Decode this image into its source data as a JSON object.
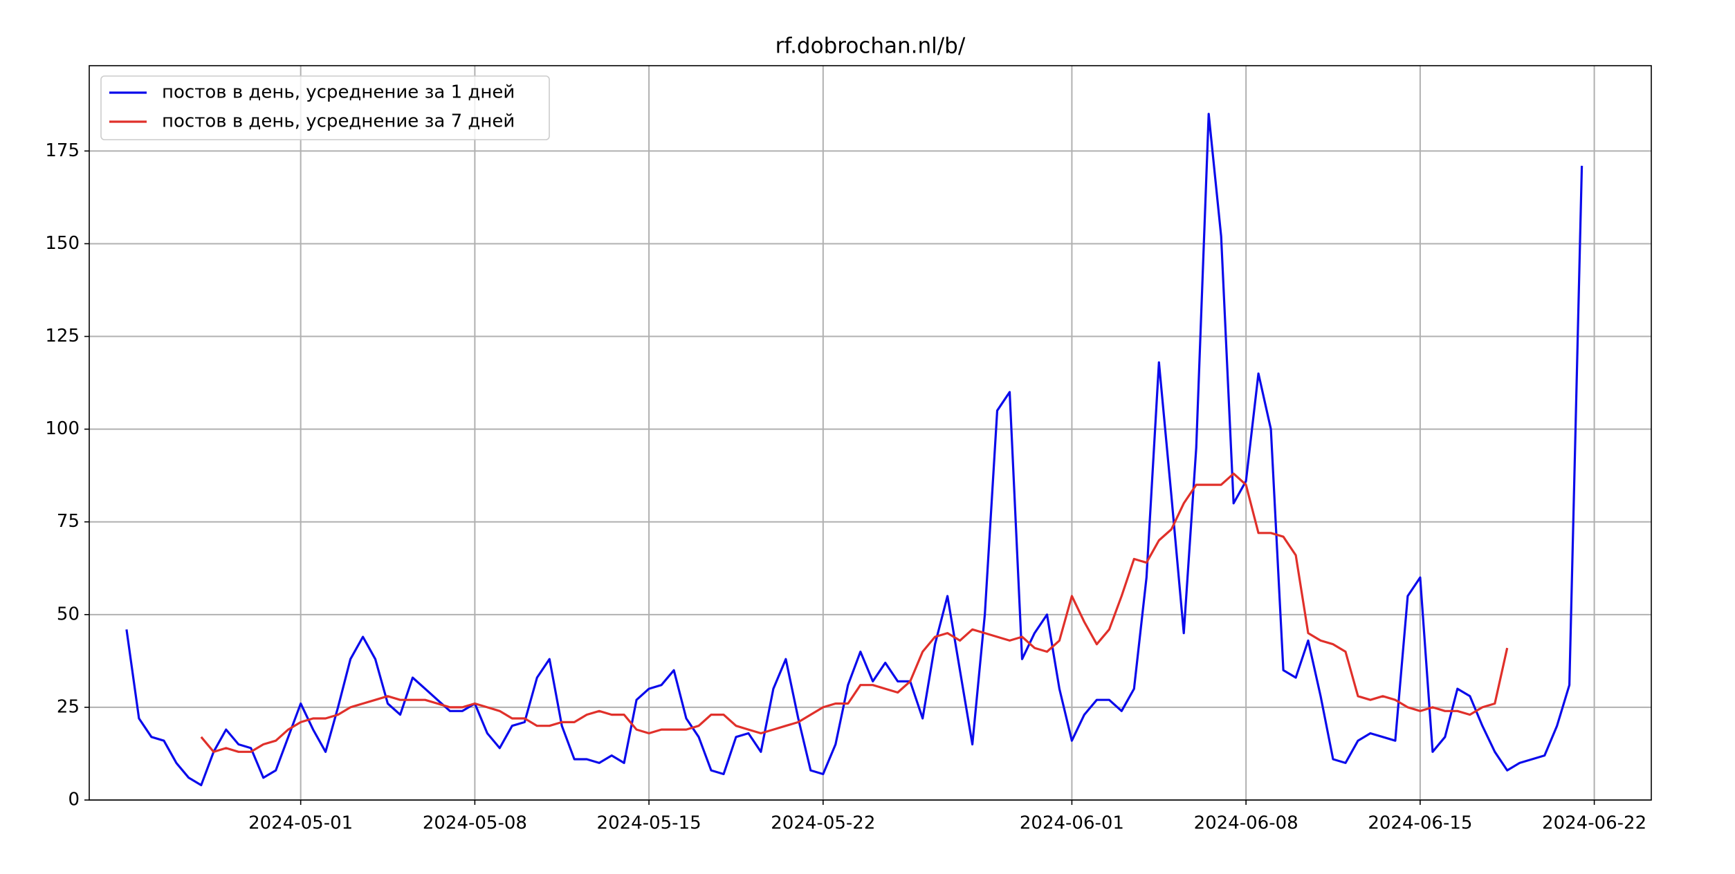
{
  "chart_data": {
    "type": "line",
    "title": "rf.dobrochan.nl/b/",
    "x": [
      "2024-04-24T00:00",
      "2024-04-24T12:00",
      "2024-04-25T00:00",
      "2024-04-25T12:00",
      "2024-04-26T00:00",
      "2024-04-26T12:00",
      "2024-04-27T00:00",
      "2024-04-27T12:00",
      "2024-04-28T00:00",
      "2024-04-28T12:00",
      "2024-04-29T00:00",
      "2024-04-29T12:00",
      "2024-04-30T00:00",
      "2024-04-30T12:00",
      "2024-05-01T00:00",
      "2024-05-01T12:00",
      "2024-05-02T00:00",
      "2024-05-02T12:00",
      "2024-05-03T00:00",
      "2024-05-03T12:00",
      "2024-05-04T00:00",
      "2024-05-04T12:00",
      "2024-05-05T00:00",
      "2024-05-05T12:00",
      "2024-05-06T00:00",
      "2024-05-06T12:00",
      "2024-05-07T00:00",
      "2024-05-07T12:00",
      "2024-05-08T00:00",
      "2024-05-08T12:00",
      "2024-05-09T00:00",
      "2024-05-09T12:00",
      "2024-05-10T00:00",
      "2024-05-10T12:00",
      "2024-05-11T00:00",
      "2024-05-11T12:00",
      "2024-05-12T00:00",
      "2024-05-12T12:00",
      "2024-05-13T00:00",
      "2024-05-13T12:00",
      "2024-05-14T00:00",
      "2024-05-14T12:00",
      "2024-05-15T00:00",
      "2024-05-15T12:00",
      "2024-05-16T00:00",
      "2024-05-16T12:00",
      "2024-05-17T00:00",
      "2024-05-17T12:00",
      "2024-05-18T00:00",
      "2024-05-18T12:00",
      "2024-05-19T00:00",
      "2024-05-19T12:00",
      "2024-05-20T00:00",
      "2024-05-20T12:00",
      "2024-05-21T00:00",
      "2024-05-21T12:00",
      "2024-05-22T00:00",
      "2024-05-22T12:00",
      "2024-05-23T00:00",
      "2024-05-23T12:00",
      "2024-05-24T00:00",
      "2024-05-24T12:00",
      "2024-05-25T00:00",
      "2024-05-25T12:00",
      "2024-05-26T00:00",
      "2024-05-26T12:00",
      "2024-05-27T00:00",
      "2024-05-27T12:00",
      "2024-05-28T00:00",
      "2024-05-28T12:00",
      "2024-05-29T00:00",
      "2024-05-29T12:00",
      "2024-05-30T00:00",
      "2024-05-30T12:00",
      "2024-05-31T00:00",
      "2024-05-31T12:00",
      "2024-06-01T00:00",
      "2024-06-01T12:00",
      "2024-06-02T00:00",
      "2024-06-02T12:00",
      "2024-06-03T00:00",
      "2024-06-03T12:00",
      "2024-06-04T00:00",
      "2024-06-04T12:00",
      "2024-06-05T00:00",
      "2024-06-05T12:00",
      "2024-06-06T00:00",
      "2024-06-06T12:00",
      "2024-06-07T00:00",
      "2024-06-07T12:00",
      "2024-06-08T00:00",
      "2024-06-08T12:00",
      "2024-06-09T00:00",
      "2024-06-09T12:00",
      "2024-06-10T00:00",
      "2024-06-10T12:00",
      "2024-06-11T00:00",
      "2024-06-11T12:00",
      "2024-06-12T00:00",
      "2024-06-12T12:00",
      "2024-06-13T00:00",
      "2024-06-13T12:00",
      "2024-06-14T00:00",
      "2024-06-14T12:00",
      "2024-06-15T00:00",
      "2024-06-15T12:00",
      "2024-06-16T00:00",
      "2024-06-16T12:00",
      "2024-06-17T00:00",
      "2024-06-17T12:00",
      "2024-06-18T00:00",
      "2024-06-18T12:00",
      "2024-06-19T00:00",
      "2024-06-19T12:00",
      "2024-06-20T00:00",
      "2024-06-20T12:00",
      "2024-06-21T00:00",
      "2024-06-21T12:00"
    ],
    "series": [
      {
        "name": "постов в день, усреднение за 1 дней",
        "color": "#0a0aeb",
        "values": [
          46,
          22,
          17,
          16,
          10,
          6,
          4,
          13,
          19,
          15,
          14,
          6,
          8,
          17,
          26,
          19,
          13,
          25,
          38,
          44,
          38,
          26,
          23,
          33,
          30,
          27,
          24,
          24,
          26,
          18,
          14,
          20,
          21,
          33,
          38,
          20,
          11,
          11,
          10,
          12,
          10,
          27,
          30,
          31,
          35,
          22,
          17,
          8,
          7,
          17,
          18,
          13,
          30,
          38,
          22,
          8,
          7,
          15,
          31,
          40,
          32,
          37,
          32,
          32,
          22,
          42,
          55,
          35,
          15,
          50,
          105,
          110,
          38,
          45,
          50,
          30,
          16,
          23,
          27,
          27,
          24,
          30,
          60,
          118,
          82,
          45,
          95,
          185,
          152,
          80,
          86,
          115,
          100,
          35,
          33,
          43,
          28,
          11,
          10,
          16,
          18,
          17,
          16,
          55,
          60,
          13,
          17,
          30,
          28,
          20,
          13,
          8,
          10,
          11,
          12,
          20,
          31,
          171
        ]
      },
      {
        "name": "постов в день, усреднение за 7 дней",
        "color": "#e0302a",
        "values": [
          null,
          null,
          null,
          null,
          null,
          null,
          17,
          13,
          14,
          13,
          13,
          15,
          16,
          19,
          21,
          22,
          22,
          23,
          25,
          26,
          27,
          28,
          27,
          27,
          27,
          26,
          25,
          25,
          26,
          25,
          24,
          22,
          22,
          20,
          20,
          21,
          21,
          23,
          24,
          23,
          23,
          19,
          18,
          19,
          19,
          19,
          20,
          23,
          23,
          20,
          19,
          18,
          19,
          20,
          21,
          23,
          25,
          26,
          26,
          31,
          31,
          30,
          29,
          32,
          40,
          44,
          45,
          43,
          46,
          45,
          44,
          43,
          44,
          41,
          40,
          43,
          55,
          48,
          42,
          46,
          55,
          65,
          64,
          70,
          73,
          80,
          85,
          85,
          85,
          88,
          85,
          72,
          72,
          71,
          66,
          45,
          43,
          42,
          40,
          28,
          27,
          28,
          27,
          25,
          24,
          25,
          24,
          24,
          23,
          25,
          26,
          41,
          null,
          null,
          null,
          null,
          null,
          null
        ]
      }
    ],
    "xlim": [
      "2024-04-22T12:00",
      "2024-06-24T07:00"
    ],
    "xticks": [
      "2024-05-01",
      "2024-05-08",
      "2024-05-15",
      "2024-05-22",
      "2024-06-01",
      "2024-06-08",
      "2024-06-15",
      "2024-06-22"
    ],
    "ylim": [
      0,
      198
    ],
    "yticks": [
      0,
      25,
      50,
      75,
      100,
      125,
      150,
      175
    ],
    "grid": true,
    "legend": "upper left"
  }
}
